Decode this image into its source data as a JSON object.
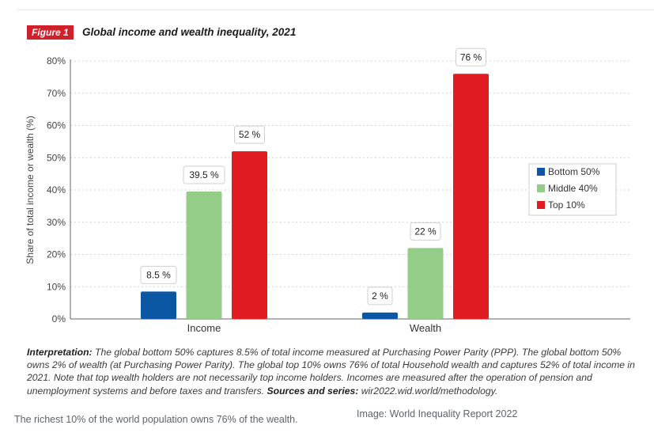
{
  "figure": {
    "badge": "Figure 1",
    "title": "Global income and wealth inequality, 2021"
  },
  "chart_data": {
    "type": "bar",
    "categories": [
      "Income",
      "Wealth"
    ],
    "series": [
      {
        "name": "Bottom 50%",
        "color": "#0b57a4",
        "values": [
          8.5,
          2
        ],
        "labels": [
          "8.5 %",
          "2 %"
        ]
      },
      {
        "name": "Middle 40%",
        "color": "#93cd88",
        "values": [
          39.5,
          22
        ],
        "labels": [
          "39.5 %",
          "22 %"
        ]
      },
      {
        "name": "Top 10%",
        "color": "#e01b22",
        "values": [
          52,
          76
        ],
        "labels": [
          "52 %",
          "76 %"
        ]
      }
    ],
    "ylabel": "Share of total income or wealth (%)",
    "xlabel": "",
    "ylim": [
      0,
      80
    ],
    "yticks": [
      0,
      10,
      20,
      30,
      40,
      50,
      60,
      70,
      80
    ],
    "ytick_labels": [
      "0%",
      "10%",
      "20%",
      "30%",
      "40%",
      "50%",
      "60%",
      "70%",
      "80%"
    ],
    "grid": true,
    "legend_position": "right"
  },
  "interpretation": {
    "lead": "Interpretation:",
    "body": " The global bottom 50% captures 8.5% of total income measured at Purchasing Power Parity (PPP). The global bottom 50% owns 2% of wealth (at Purchasing Power Parity). The global top 10% owns 76% of total Household wealth and captures 52% of total income in 2021. Note that top wealth holders are not necessarily top income holders. Incomes are measured after the operation of pension and unemployment systems and before taxes and transfers. ",
    "sources_lead": "Sources and series:",
    "sources_body": " wir2022.wid.world/methodology."
  },
  "caption": "The richest 10% of the world population owns 76% of the wealth.",
  "credit": "Image: World Inequality Report 2022"
}
